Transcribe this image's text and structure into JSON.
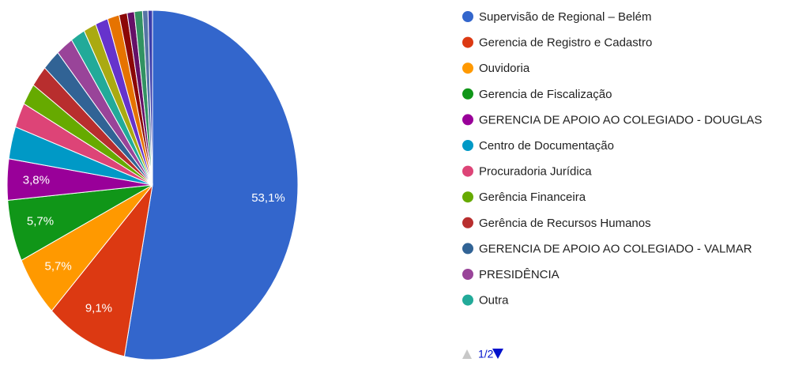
{
  "chart_data": {
    "type": "pie",
    "categories": [
      "Supervisão de Regional – Belém",
      "Gerencia de Registro e Cadastro",
      "Ouvidoria",
      "Gerencia de Fiscalização",
      "GERENCIA DE APOIO AO COLEGIADO - DOUGLAS",
      "Centro de Documentação",
      "Procuradoria Jurídica",
      "Gerência Financeira",
      "Gerência de Recursos Humanos",
      "GERENCIA DE APOIO AO COLEGIADO - VALMAR",
      "PRESIDÊNCIA",
      "Outra",
      null,
      null,
      null,
      null,
      null,
      null,
      null,
      null
    ],
    "values": [
      53.1,
      9.1,
      5.7,
      5.7,
      3.8,
      3.0,
      2.3,
      2.0,
      2.0,
      2.0,
      1.9,
      1.6,
      1.4,
      1.4,
      1.3,
      0.9,
      0.8,
      0.9,
      0.6,
      0.5
    ],
    "value_labels": [
      "53,1%",
      "9,1%",
      "5,7%",
      "5,7%",
      "3,8%",
      null,
      null,
      null,
      null,
      null,
      null,
      null,
      null,
      null,
      null,
      null,
      null,
      null,
      null,
      null
    ],
    "colors": [
      "#3366cc",
      "#dc3912",
      "#ff9900",
      "#109618",
      "#990099",
      "#0099c6",
      "#dd4477",
      "#66aa00",
      "#b82e2e",
      "#316395",
      "#994499",
      "#22aa99",
      "#aaaa11",
      "#6633cc",
      "#e67300",
      "#8b0707",
      "#651067",
      "#329262",
      "#5574a6",
      "#3b3eac"
    ],
    "legend_page": "1/2"
  }
}
